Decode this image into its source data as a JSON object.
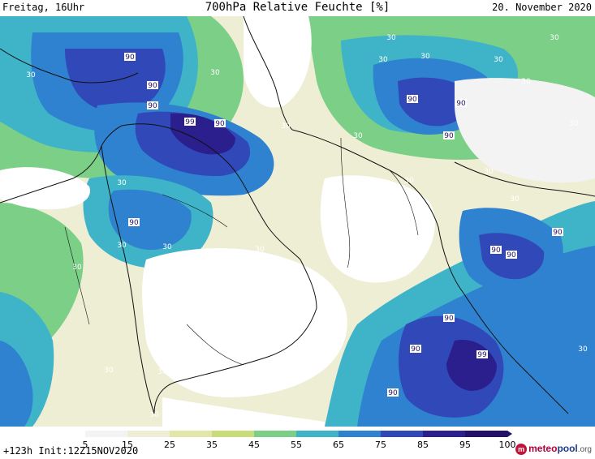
{
  "header": {
    "valid_time": "Freitag, 16Uhr",
    "title": "700hPa Relative Feuchte [%]",
    "date": "20. November 2020"
  },
  "footer": {
    "run_info": "+123h Init:12Z15NOV2020",
    "brand": {
      "part1": "meteo",
      "part2": "pool",
      "part3": ".org"
    }
  },
  "colorbar": {
    "labels": [
      "5",
      "15",
      "25",
      "35",
      "45",
      "55",
      "65",
      "75",
      "85",
      "95",
      "100"
    ],
    "colors": [
      "#ffffff",
      "#f3f3f3",
      "#eeeed4",
      "#e2e6a8",
      "#c8dc7a",
      "#7ccf86",
      "#3fb4c8",
      "#2f82cf",
      "#3048b8",
      "#2a1f8c",
      "#241066"
    ]
  },
  "map": {
    "contour_labels": [
      "90",
      "90",
      "90",
      "99",
      "90",
      "90",
      "90",
      "90",
      "90",
      "90",
      "90",
      "90",
      "90",
      "99",
      "90",
      "90",
      "30",
      "30",
      "30",
      "30",
      "30",
      "30",
      "30",
      "30",
      "30",
      "30",
      "30",
      "30",
      "30",
      "30",
      "30",
      "30",
      "30",
      "30",
      "30",
      "30",
      "30",
      "30",
      "30",
      "30"
    ]
  }
}
